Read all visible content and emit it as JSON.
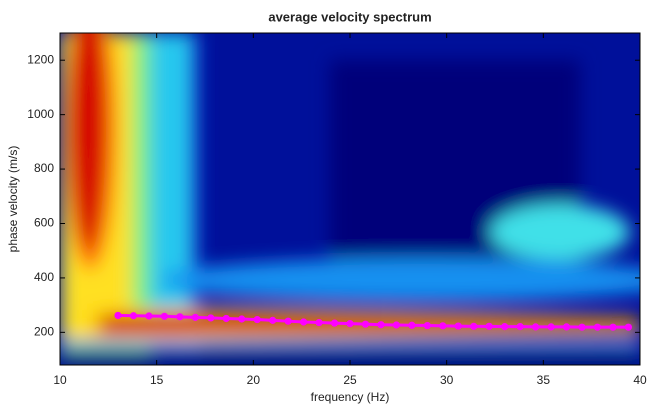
{
  "chart_data": {
    "type": "line",
    "title": "average velocity spectrum",
    "x_label": "frequency (Hz)",
    "y_label": "phase velocity (m/s)",
    "x": [
      13,
      13.8,
      14.6,
      15.4,
      16.2,
      17,
      17.8,
      18.6,
      19.4,
      20.2,
      21,
      21.8,
      22.6,
      23.4,
      24.2,
      25,
      25.8,
      26.6,
      27.4,
      28.2,
      29,
      29.8,
      30.6,
      31.4,
      32.2,
      33,
      33.8,
      34.6,
      35.4,
      36.2,
      37,
      37.8,
      38.6,
      39.4
    ],
    "series": [
      {
        "color": "#ff00ff",
        "values": [
          262,
          261,
          260,
          259,
          257,
          255,
          253,
          251,
          249,
          247,
          244,
          241,
          238,
          236,
          234,
          232,
          230,
          228,
          227,
          226,
          225,
          224,
          223,
          222,
          222,
          221,
          221,
          220,
          220,
          220,
          219,
          219,
          219,
          219
        ]
      }
    ],
    "xlim": [
      10,
      40
    ],
    "xticks": [
      10,
      15,
      20,
      25,
      30,
      35,
      40
    ],
    "ylim": [
      80,
      1300
    ],
    "yticks": [
      200,
      400,
      600,
      800,
      1000,
      1200
    ]
  }
}
